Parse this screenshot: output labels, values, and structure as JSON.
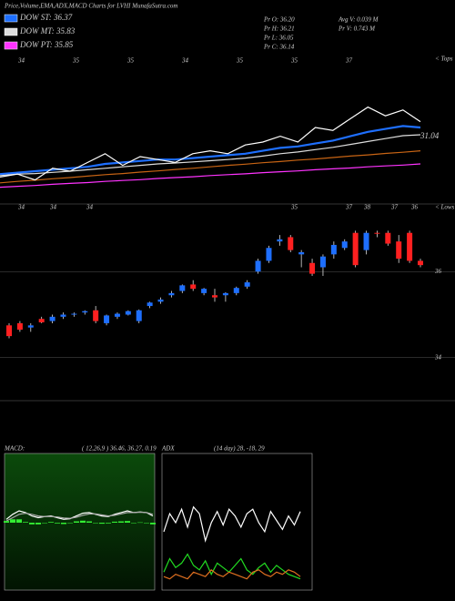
{
  "header": {
    "title": "Price,Volume,EMA,ADX,MACD Charts for LVHI MunafaSutra.com",
    "info": [
      "Pr  O: 36.20",
      "Pr  H: 36.21",
      "Pr  L: 36.05",
      "Pr  C: 36.14"
    ],
    "volume": [
      "Avg V: 0.039 M",
      "Pr  V: 0.743 M"
    ]
  },
  "chart_data": [
    {
      "type": "line",
      "title": null,
      "ylim": [
        33,
        38
      ],
      "side_labels": [
        "< Tops"
      ],
      "price_label": "31.04",
      "day_labels": [
        "34",
        "35",
        "35",
        "34",
        "35",
        "35",
        "37"
      ],
      "categories": [
        null,
        null,
        null,
        null,
        null,
        null,
        null,
        null,
        null,
        null,
        null,
        null,
        null,
        null,
        null,
        null,
        null,
        null,
        null,
        null,
        null,
        null,
        null,
        null,
        null
      ],
      "series": [
        {
          "name": "DOW ST: 36.37",
          "color": "#1e6fff",
          "values": [
            33.9,
            33.95,
            34.0,
            34.05,
            34.1,
            34.15,
            34.25,
            34.3,
            34.35,
            34.4,
            34.4,
            34.45,
            34.5,
            34.55,
            34.6,
            34.7,
            34.8,
            34.85,
            34.95,
            35.05,
            35.2,
            35.35,
            35.45,
            35.55,
            35.5
          ]
        },
        {
          "name": "DOW MT: 35.83",
          "color": "#dddddd",
          "values": [
            33.85,
            33.9,
            33.92,
            33.96,
            34.0,
            34.05,
            34.1,
            34.15,
            34.2,
            34.25,
            34.28,
            34.32,
            34.36,
            34.4,
            34.45,
            34.52,
            34.6,
            34.66,
            34.74,
            34.82,
            34.92,
            35.02,
            35.12,
            35.22,
            35.25
          ]
        },
        {
          "name": "DOW PT: 35.85",
          "color": "#ff33ff",
          "values": [
            33.45,
            33.48,
            33.51,
            33.55,
            33.58,
            33.61,
            33.65,
            33.68,
            33.71,
            33.75,
            33.78,
            33.81,
            33.85,
            33.88,
            33.91,
            33.95,
            33.98,
            34.01,
            34.05,
            34.08,
            34.11,
            34.15,
            34.18,
            34.21,
            34.25
          ]
        },
        {
          "name": null,
          "color": "#c86414",
          "values": [
            33.6,
            33.65,
            33.69,
            33.74,
            33.78,
            33.83,
            33.88,
            33.92,
            33.97,
            34.01,
            34.06,
            34.1,
            34.15,
            34.2,
            34.24,
            34.29,
            34.33,
            34.38,
            34.42,
            34.47,
            34.52,
            34.56,
            34.61,
            34.65,
            34.7
          ]
        },
        {
          "name": null,
          "color": "#ffffff",
          "values": [
            33.8,
            33.9,
            33.7,
            34.1,
            34.0,
            34.3,
            34.6,
            34.2,
            34.5,
            34.4,
            34.3,
            34.6,
            34.7,
            34.6,
            34.9,
            35.0,
            35.2,
            35.0,
            35.5,
            35.4,
            35.8,
            36.2,
            35.9,
            36.1,
            35.7
          ]
        }
      ]
    },
    {
      "type": "candlestick",
      "ylim": [
        33,
        37.55
      ],
      "yticks": [
        36,
        34
      ],
      "side_labels": [
        "< Lows"
      ],
      "day_labels": [
        "34",
        "34",
        "34",
        "35",
        "37",
        "38",
        "37",
        "36"
      ],
      "up_color": "#1e6fff",
      "down_color": "#ff2020",
      "open": [
        34.75,
        34.8,
        34.7,
        34.9,
        34.85,
        34.95,
        35.0,
        35.05,
        35.1,
        34.8,
        34.95,
        35.0,
        34.85,
        35.2,
        35.3,
        35.45,
        35.55,
        35.7,
        35.5,
        35.45,
        35.45,
        35.5,
        35.65,
        36.0,
        36.25,
        36.7,
        36.8,
        36.4,
        36.2,
        36.1,
        36.4,
        36.55,
        36.9,
        36.5,
        36.9,
        36.9,
        36.7,
        36.9,
        36.25
      ],
      "high": [
        34.8,
        34.85,
        34.8,
        34.95,
        35.0,
        35.05,
        35.05,
        35.1,
        35.2,
        35.0,
        35.05,
        35.1,
        35.12,
        35.3,
        35.4,
        35.55,
        35.7,
        35.8,
        35.62,
        35.6,
        35.52,
        35.65,
        35.8,
        36.3,
        36.6,
        36.85,
        36.85,
        36.5,
        36.3,
        36.4,
        36.7,
        36.75,
        36.95,
        36.95,
        36.95,
        36.95,
        36.85,
        36.95,
        36.3
      ],
      "low": [
        34.45,
        34.6,
        34.6,
        34.8,
        34.8,
        34.9,
        34.95,
        35.0,
        34.8,
        34.75,
        34.9,
        34.98,
        34.8,
        35.15,
        35.25,
        35.4,
        35.5,
        35.55,
        35.45,
        35.3,
        35.3,
        35.45,
        35.6,
        35.95,
        36.2,
        36.6,
        36.45,
        36.1,
        35.9,
        35.9,
        36.3,
        36.5,
        36.1,
        36.4,
        36.8,
        36.6,
        36.2,
        36.2,
        36.1
      ],
      "close": [
        34.5,
        34.65,
        34.75,
        34.82,
        34.95,
        35.0,
        35.02,
        35.08,
        34.85,
        34.98,
        35.02,
        35.08,
        35.1,
        35.28,
        35.35,
        35.5,
        35.68,
        35.6,
        35.6,
        35.4,
        35.5,
        35.62,
        35.75,
        36.25,
        36.55,
        36.75,
        36.5,
        36.45,
        35.95,
        36.35,
        36.62,
        36.7,
        36.15,
        36.9,
        36.88,
        36.65,
        36.3,
        36.25,
        36.15
      ]
    },
    {
      "type": "macd",
      "title": "MACD:",
      "subtitle": "( 12,26,9 ) 36.46, 36.27, 0.19",
      "ylim": [
        -2,
        2
      ],
      "categories": [
        null,
        null,
        null,
        null,
        null,
        null,
        null,
        null,
        null,
        null,
        null,
        null,
        null,
        null,
        null,
        null,
        null,
        null,
        null,
        null,
        null,
        null,
        null,
        null
      ],
      "series": [
        {
          "name": null,
          "color": "#ffffff",
          "values": [
            0.1,
            0.25,
            0.35,
            0.3,
            0.2,
            0.15,
            0.18,
            0.2,
            0.15,
            0.1,
            0.12,
            0.2,
            0.28,
            0.3,
            0.25,
            0.2,
            0.18,
            0.25,
            0.3,
            0.35,
            0.3,
            0.32,
            0.3,
            0.2
          ]
        },
        {
          "name": null,
          "color": "#aaaaaa",
          "values": [
            0.05,
            0.15,
            0.25,
            0.28,
            0.25,
            0.2,
            0.18,
            0.18,
            0.17,
            0.14,
            0.13,
            0.16,
            0.22,
            0.26,
            0.26,
            0.23,
            0.2,
            0.22,
            0.26,
            0.3,
            0.3,
            0.31,
            0.3,
            0.25
          ]
        },
        {
          "name": null,
          "color": "#33ee33",
          "type": "bar",
          "values": [
            0.05,
            0.1,
            0.1,
            0.02,
            -0.05,
            -0.05,
            0.0,
            0.02,
            -0.02,
            -0.04,
            -0.01,
            0.04,
            0.06,
            0.04,
            -0.01,
            -0.03,
            -0.02,
            0.03,
            0.04,
            0.05,
            0.0,
            0.01,
            0.0,
            -0.05
          ]
        }
      ]
    },
    {
      "type": "adx",
      "title": "ADX",
      "subtitle": "(14 day) 28, -18, 29",
      "ylim": [
        0,
        60
      ],
      "categories": [
        null,
        null,
        null,
        null,
        null,
        null,
        null,
        null,
        null,
        null,
        null,
        null,
        null,
        null,
        null,
        null,
        null,
        null,
        null,
        null,
        null,
        null,
        null,
        null
      ],
      "series": [
        {
          "name": null,
          "color": "#ffffff",
          "values": [
            26,
            34,
            30,
            36,
            28,
            37,
            34,
            22,
            30,
            35,
            29,
            36,
            33,
            28,
            34,
            36,
            30,
            26,
            35,
            31,
            27,
            33,
            29,
            35
          ]
        },
        {
          "name": null,
          "color": "#22dd22",
          "values": [
            8,
            14,
            10,
            12,
            16,
            11,
            9,
            13,
            7,
            12,
            10,
            8,
            11,
            14,
            9,
            7,
            10,
            12,
            8,
            11,
            9,
            7,
            6,
            5
          ]
        },
        {
          "name": null,
          "color": "#e07020",
          "values": [
            6,
            5,
            7,
            6,
            5,
            8,
            7,
            6,
            9,
            7,
            6,
            8,
            7,
            6,
            5,
            8,
            9,
            7,
            6,
            8,
            7,
            9,
            8,
            6
          ]
        }
      ]
    }
  ]
}
